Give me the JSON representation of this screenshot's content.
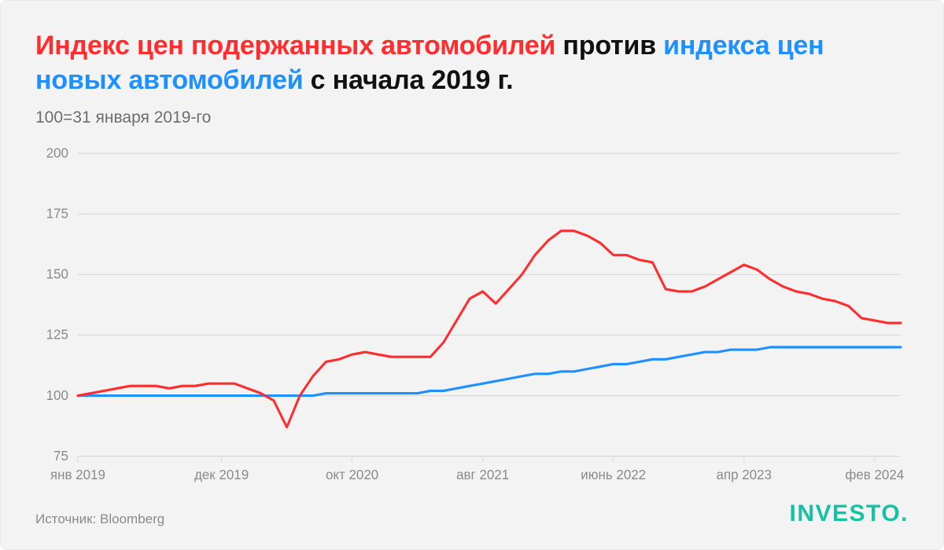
{
  "title": {
    "part1": "Индекс цен подержанных автомобилей",
    "mid1": " против ",
    "part2": "индекса цен новых автомобилей",
    "mid2": " с начала 2019 г."
  },
  "subtitle": "100=31 января 2019-го",
  "source": "Источник: Bloomberg",
  "brand": "INVESTO",
  "brand_dot": ".",
  "colors": {
    "series_used": "#ff2d2d",
    "series_new": "#1e90ff",
    "grid": "#d7d7d7",
    "axis_text": "#8a8a8a",
    "background": "#f3f3f3",
    "title_text": "#111111",
    "subtitle_text": "#6d6d6d",
    "brand": "#16c2a3"
  },
  "chart": {
    "type": "line",
    "background_color": "#f3f3f3",
    "line_width": 3,
    "ylim": [
      75,
      200
    ],
    "yticks": [
      75,
      100,
      125,
      150,
      175,
      200
    ],
    "xlim": [
      0,
      63
    ],
    "xticks": [
      {
        "i": 0,
        "label": "янв 2019"
      },
      {
        "i": 11,
        "label": "дек 2019"
      },
      {
        "i": 21,
        "label": "окт 2020"
      },
      {
        "i": 31,
        "label": "авг 2021"
      },
      {
        "i": 41,
        "label": "июнь 2022"
      },
      {
        "i": 51,
        "label": "апр 2023"
      },
      {
        "i": 61,
        "label": "фев 2024"
      }
    ],
    "series": {
      "used": {
        "name": "Индекс цен подержанных автомобилей",
        "color": "#ff2d2d",
        "values": [
          100,
          101,
          102,
          103,
          104,
          104,
          104,
          103,
          104,
          104,
          105,
          105,
          105,
          103,
          101,
          98,
          87,
          100,
          108,
          114,
          115,
          117,
          118,
          117,
          116,
          116,
          116,
          116,
          122,
          131,
          140,
          143,
          138,
          144,
          150,
          158,
          164,
          168,
          168,
          166,
          163,
          158,
          158,
          156,
          155,
          144,
          143,
          143,
          145,
          148,
          151,
          154,
          152,
          148,
          145,
          143,
          142,
          140,
          139,
          137,
          132,
          131,
          130,
          130
        ]
      },
      "new": {
        "name": "Индекс цен новых автомобилей",
        "color": "#1e90ff",
        "values": [
          100,
          100,
          100,
          100,
          100,
          100,
          100,
          100,
          100,
          100,
          100,
          100,
          100,
          100,
          100,
          100,
          100,
          100,
          100,
          101,
          101,
          101,
          101,
          101,
          101,
          101,
          101,
          102,
          102,
          103,
          104,
          105,
          106,
          107,
          108,
          109,
          109,
          110,
          110,
          111,
          112,
          113,
          113,
          114,
          115,
          115,
          116,
          117,
          118,
          118,
          119,
          119,
          119,
          120,
          120,
          120,
          120,
          120,
          120,
          120,
          120,
          120,
          120,
          120
        ]
      }
    },
    "axis_fontsize": 17,
    "title_fontsize": 34
  }
}
